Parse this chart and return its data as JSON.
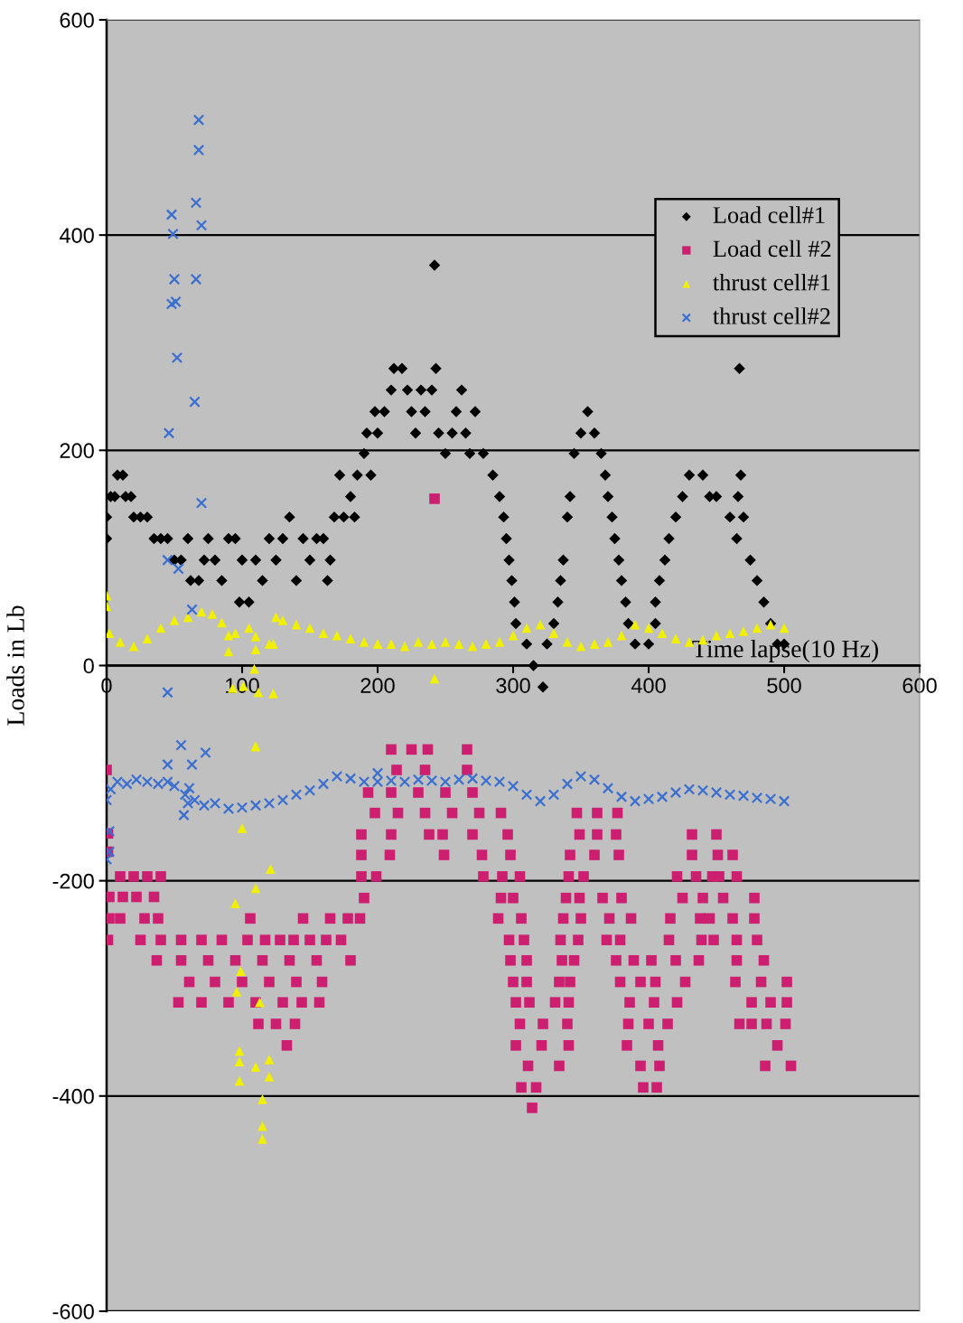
{
  "chart_data": {
    "type": "scatter",
    "xlabel": "Time lapse(10 Hz)",
    "ylabel": "Loads in Lb",
    "xlim": [
      0,
      600
    ],
    "xticks": [
      0,
      100,
      200,
      300,
      400,
      500,
      600
    ],
    "ylim": [
      -600,
      600
    ],
    "yticks": [
      -600,
      -400,
      -200,
      0,
      200,
      400,
      600
    ],
    "grid": "y",
    "legend": "top right",
    "series": [
      {
        "name": "Load cell#1",
        "color": "#000000",
        "marker": "diamond",
        "x": [
          0,
          0,
          3,
          6,
          8,
          12,
          14,
          18,
          20,
          25,
          30,
          35,
          40,
          45,
          50,
          55,
          60,
          62,
          68,
          72,
          75,
          80,
          85,
          90,
          95,
          98,
          105,
          100,
          110,
          115,
          120,
          125,
          130,
          135,
          140,
          145,
          150,
          155,
          160,
          163,
          165,
          168,
          172,
          175,
          180,
          183,
          185,
          190,
          192,
          195,
          198,
          200,
          205,
          210,
          212,
          218,
          222,
          225,
          228,
          232,
          235,
          240,
          243,
          245,
          242,
          250,
          255,
          258,
          262,
          265,
          268,
          272,
          278,
          285,
          290,
          293,
          295,
          297,
          299,
          301,
          302,
          310,
          315,
          322,
          325,
          330,
          333,
          335,
          337,
          340,
          342,
          345,
          350,
          355,
          360,
          365,
          368,
          370,
          373,
          375,
          378,
          380,
          383,
          385,
          390,
          400,
          405,
          405,
          408,
          412,
          415,
          420,
          425,
          430,
          440,
          445,
          450,
          460,
          465,
          466,
          468,
          467,
          470,
          475,
          480,
          485,
          490,
          495,
          500
        ],
        "values": [
          138,
          118,
          157,
          157,
          177,
          177,
          157,
          157,
          138,
          138,
          138,
          118,
          118,
          118,
          98,
          98,
          118,
          79,
          79,
          98,
          118,
          98,
          79,
          118,
          118,
          59,
          59,
          98,
          98,
          79,
          118,
          98,
          118,
          138,
          79,
          118,
          98,
          118,
          118,
          79,
          98,
          138,
          177,
          138,
          157,
          138,
          177,
          197,
          216,
          177,
          236,
          216,
          236,
          256,
          276,
          276,
          256,
          236,
          216,
          256,
          236,
          256,
          276,
          216,
          372,
          197,
          216,
          236,
          256,
          216,
          197,
          236,
          197,
          177,
          157,
          138,
          118,
          98,
          79,
          59,
          39,
          20,
          0,
          -20,
          20,
          39,
          59,
          79,
          98,
          138,
          157,
          197,
          216,
          236,
          216,
          197,
          177,
          157,
          138,
          118,
          98,
          79,
          59,
          39,
          20,
          20,
          39,
          59,
          79,
          98,
          118,
          138,
          157,
          177,
          177,
          157,
          157,
          138,
          118,
          157,
          177,
          276,
          138,
          98,
          79,
          59,
          39,
          20,
          20
        ]
      },
      {
        "name": "Load cell #2",
        "color": "#cc1f70",
        "marker": "square",
        "x": [
          0,
          1,
          1,
          10,
          20,
          30,
          40,
          2,
          12,
          22,
          35,
          2,
          10,
          28,
          38,
          106,
          145,
          165,
          178,
          187,
          1,
          25,
          40,
          55,
          70,
          85,
          104,
          117,
          128,
          138,
          150,
          162,
          173,
          37,
          55,
          75,
          95,
          115,
          135,
          155,
          180,
          61,
          80,
          100,
          120,
          140,
          159,
          53,
          70,
          90,
          110,
          130,
          144,
          157,
          112,
          125,
          139,
          133,
          210,
          225,
          237,
          266,
          214,
          235,
          266,
          193,
          210,
          230,
          250,
          270,
          198,
          215,
          235,
          255,
          275,
          291,
          347,
          362,
          377,
          188,
          210,
          238,
          248,
          270,
          296,
          349,
          362,
          376,
          432,
          450,
          188,
          209,
          249,
          277,
          298,
          342,
          360,
          378,
          432,
          451,
          462,
          188,
          199,
          278,
          292,
          305,
          341,
          352,
          421,
          435,
          447,
          452,
          465,
          190,
          291,
          300,
          339,
          349,
          366,
          380,
          425,
          440,
          455,
          478,
          289,
          306,
          337,
          350,
          371,
          387,
          416,
          438,
          445,
          462,
          478,
          297,
          308,
          335,
          348,
          369,
          379,
          415,
          439,
          448,
          465,
          480,
          298,
          310,
          336,
          345,
          376,
          389,
          402,
          420,
          437,
          465,
          485,
          300,
          310,
          334,
          342,
          379,
          394,
          405,
          427,
          464,
          483,
          502,
          302,
          312,
          331,
          341,
          386,
          404,
          421,
          476,
          490,
          502,
          305,
          322,
          340,
          385,
          400,
          414,
          467,
          476,
          487,
          501,
          302,
          321,
          341,
          384,
          407,
          495,
          311,
          334,
          394,
          408,
          486,
          505,
          306,
          317,
          396,
          406,
          314,
          242
        ],
        "values": [
          -97,
          -156,
          -173,
          -196,
          -196,
          -196,
          -196,
          -215,
          -215,
          -215,
          -215,
          -235,
          -235,
          -235,
          -235,
          -235,
          -235,
          -235,
          -235,
          -235,
          -255,
          -255,
          -255,
          -255,
          -255,
          -255,
          -255,
          -255,
          -255,
          -255,
          -255,
          -255,
          -255,
          -274,
          -274,
          -274,
          -274,
          -274,
          -274,
          -274,
          -274,
          -294,
          -294,
          -294,
          -294,
          -294,
          -294,
          -313,
          -313,
          -313,
          -313,
          -313,
          -313,
          -313,
          -333,
          -333,
          -333,
          -353,
          -78,
          -78,
          -78,
          -78,
          -97,
          -97,
          -97,
          -118,
          -118,
          -118,
          -118,
          -118,
          -137,
          -137,
          -137,
          -137,
          -137,
          -137,
          -137,
          -137,
          -137,
          -157,
          -157,
          -157,
          -157,
          -157,
          -157,
          -157,
          -157,
          -157,
          -157,
          -157,
          -176,
          -176,
          -176,
          -176,
          -176,
          -176,
          -176,
          -176,
          -176,
          -176,
          -176,
          -196,
          -196,
          -196,
          -196,
          -196,
          -196,
          -196,
          -196,
          -196,
          -196,
          -196,
          -196,
          -216,
          -216,
          -216,
          -216,
          -216,
          -216,
          -216,
          -216,
          -216,
          -216,
          -216,
          -235,
          -235,
          -235,
          -235,
          -235,
          -235,
          -235,
          -235,
          -235,
          -235,
          -235,
          -255,
          -255,
          -255,
          -255,
          -255,
          -255,
          -255,
          -255,
          -255,
          -255,
          -255,
          -274,
          -274,
          -274,
          -274,
          -274,
          -274,
          -274,
          -274,
          -274,
          -274,
          -274,
          -294,
          -294,
          -294,
          -294,
          -294,
          -294,
          -294,
          -294,
          -294,
          -294,
          -294,
          -313,
          -313,
          -313,
          -313,
          -313,
          -313,
          -313,
          -313,
          -313,
          -313,
          -333,
          -333,
          -333,
          -333,
          -333,
          -333,
          -333,
          -333,
          -333,
          -333,
          -353,
          -353,
          -353,
          -353,
          -353,
          -353,
          -372,
          -372,
          -372,
          -372,
          -372,
          -372,
          -392,
          -392,
          -392,
          -392,
          -411,
          155
        ]
      },
      {
        "name": "thrust cell#1",
        "color": "#f0f000",
        "marker": "triangle",
        "x": [
          0,
          0,
          2,
          10,
          20,
          30,
          40,
          50,
          60,
          70,
          78,
          85,
          90,
          90,
          95,
          93,
          101,
          105,
          109,
          110,
          110,
          110,
          112,
          120,
          123,
          123,
          125,
          130,
          140,
          150,
          160,
          170,
          180,
          190,
          200,
          210,
          220,
          230,
          240,
          242,
          250,
          260,
          270,
          280,
          290,
          300,
          310,
          320,
          330,
          340,
          350,
          360,
          370,
          380,
          390,
          400,
          410,
          420,
          430,
          440,
          450,
          460,
          470,
          480,
          490,
          500,
          110,
          100,
          121,
          110,
          95,
          99,
          96,
          113,
          98,
          98,
          98,
          120,
          110,
          120,
          115,
          115,
          115
        ],
        "values": [
          65,
          55,
          30,
          22,
          18,
          25,
          35,
          42,
          45,
          50,
          48,
          40,
          28,
          13,
          30,
          -21,
          -19,
          35,
          -3,
          15,
          27,
          -75,
          -25,
          20,
          20,
          -26,
          45,
          42,
          38,
          35,
          30,
          28,
          25,
          22,
          20,
          20,
          18,
          22,
          20,
          -12,
          22,
          20,
          18,
          20,
          22,
          28,
          35,
          38,
          30,
          22,
          18,
          20,
          22,
          28,
          38,
          35,
          30,
          25,
          22,
          24,
          28,
          30,
          32,
          35,
          38,
          35,
          -75,
          -151,
          -189,
          -207,
          -221,
          -284,
          -303,
          -313,
          -358,
          -368,
          -386,
          -366,
          -373,
          -382,
          -403,
          -428,
          -440
        ]
      },
      {
        "name": "thrust cell#2",
        "color": "#3a6fd0",
        "marker": "cross",
        "x": [
          0,
          3,
          8,
          15,
          22,
          30,
          38,
          45,
          50,
          58,
          65,
          72,
          80,
          90,
          100,
          110,
          120,
          130,
          140,
          150,
          160,
          170,
          180,
          190,
          200,
          210,
          220,
          230,
          240,
          250,
          260,
          270,
          280,
          290,
          300,
          310,
          320,
          330,
          340,
          350,
          360,
          370,
          380,
          390,
          400,
          410,
          420,
          430,
          440,
          450,
          460,
          470,
          480,
          490,
          500,
          68,
          68,
          66,
          48,
          70,
          49,
          50,
          66,
          48,
          51,
          52,
          65,
          46,
          70,
          45,
          53,
          63,
          45,
          55,
          73,
          45,
          63,
          61,
          60,
          57,
          2,
          2,
          0,
          200
        ],
        "values": [
          -125,
          -115,
          -108,
          -110,
          -106,
          -108,
          -110,
          -108,
          -112,
          -120,
          -125,
          -130,
          -128,
          -133,
          -132,
          -130,
          -128,
          -125,
          -120,
          -116,
          -110,
          -103,
          -105,
          -108,
          -108,
          -107,
          -108,
          -106,
          -107,
          -108,
          -106,
          -105,
          -107,
          -108,
          -112,
          -120,
          -126,
          -120,
          -110,
          -103,
          -106,
          -114,
          -122,
          -126,
          -124,
          -122,
          -118,
          -115,
          -116,
          -118,
          -120,
          -121,
          -123,
          -124,
          -126,
          507,
          479,
          430,
          419,
          409,
          401,
          359,
          359,
          336,
          338,
          286,
          245,
          216,
          151,
          98,
          90,
          52,
          -25,
          -74,
          -81,
          -92,
          -92,
          -114,
          -128,
          -139,
          -154,
          -173,
          -180,
          -100
        ]
      }
    ]
  }
}
